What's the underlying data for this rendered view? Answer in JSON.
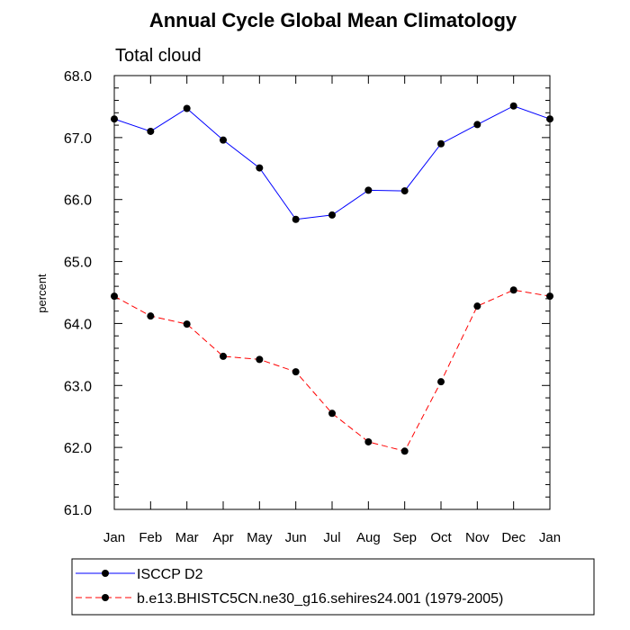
{
  "chart_data": {
    "type": "line",
    "title": "Annual Cycle Global Mean Climatology",
    "subtitle": "Total cloud",
    "ylabel": "percent",
    "xlabel": "",
    "categories": [
      "Jan",
      "Feb",
      "Mar",
      "Apr",
      "May",
      "Jun",
      "Jul",
      "Aug",
      "Sep",
      "Oct",
      "Nov",
      "Dec",
      "Jan"
    ],
    "ylim": [
      61.0,
      68.0
    ],
    "yticks": [
      "61.0",
      "62.0",
      "63.0",
      "64.0",
      "65.0",
      "66.0",
      "67.0",
      "68.0"
    ],
    "grid": false,
    "legend_position": "bottom",
    "series": [
      {
        "name": "ISCCP D2",
        "color": "#0000ff",
        "line_style": "solid",
        "marker": "filled-circle",
        "values": [
          67.3,
          67.1,
          67.47,
          66.96,
          66.51,
          65.68,
          65.75,
          66.15,
          66.14,
          66.9,
          67.21,
          67.51,
          67.3
        ]
      },
      {
        "name": "b.e13.BHISTC5CN.ne30_g16.sehires24.001 (1979-2005)",
        "color": "#ff0000",
        "line_style": "dashed",
        "marker": "filled-circle",
        "values": [
          64.44,
          64.12,
          63.99,
          63.47,
          63.42,
          63.22,
          62.55,
          62.09,
          61.94,
          63.06,
          64.28,
          64.54,
          64.44
        ]
      }
    ]
  }
}
